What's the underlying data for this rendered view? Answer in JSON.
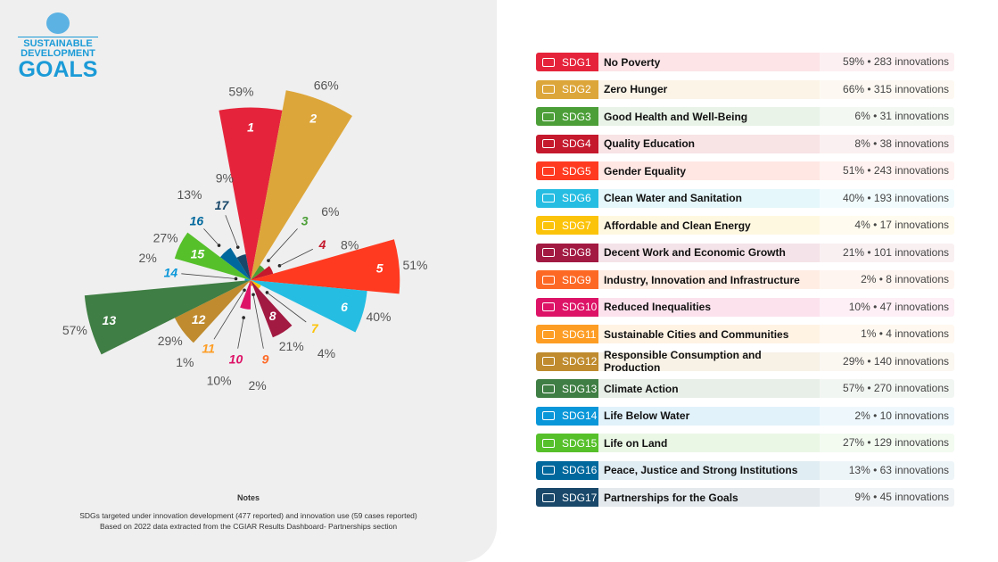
{
  "logo": {
    "line1": "SUSTAINABLE",
    "line2": "DEVELOPMENT",
    "line3": "GOALS"
  },
  "notes": {
    "title": "Notes",
    "line1": "SDGs targeted under innovation development (477 reported) and innovation use (59 cases reported)",
    "line2": "Based on 2022 data extracted from the CGIAR Results Dashboard- Partnerships section"
  },
  "chart_data": {
    "type": "polar-area",
    "categories": [
      "1",
      "2",
      "3",
      "4",
      "5",
      "6",
      "7",
      "8",
      "9",
      "10",
      "11",
      "12",
      "13",
      "14",
      "15",
      "16",
      "17"
    ],
    "values": [
      59,
      66,
      6,
      8,
      51,
      40,
      4,
      21,
      2,
      10,
      1,
      29,
      57,
      2,
      27,
      13,
      9
    ],
    "labels": [
      "59%",
      "66%",
      "6%",
      "8%",
      "51%",
      "40%",
      "4%",
      "21%",
      "2%",
      "10%",
      "1%",
      "29%",
      "57%",
      "2%",
      "27%",
      "13%",
      "9%"
    ],
    "colors": [
      "#E5243B",
      "#DDA63A",
      "#4C9F38",
      "#C5192D",
      "#FF3A21",
      "#26BDE2",
      "#FCC30B",
      "#A21942",
      "#FD6925",
      "#DD1367",
      "#FD9D24",
      "#BF8B2E",
      "#3F7E44",
      "#0A97D9",
      "#56C02B",
      "#00689D",
      "#19486A"
    ]
  },
  "legend": [
    {
      "code": "SDG1",
      "icon": "people-icon",
      "name": "No Poverty",
      "value": "59% • 283 innovations"
    },
    {
      "code": "SDG2",
      "icon": "bowl-icon",
      "name": "Zero Hunger",
      "value": "66% • 315 innovations"
    },
    {
      "code": "SDG3",
      "icon": "heartbeat-icon",
      "name": "Good Health and Well-Being",
      "value": "6% • 31 innovations"
    },
    {
      "code": "SDG4",
      "icon": "book-icon",
      "name": "Quality Education",
      "value": "8% • 38 innovations"
    },
    {
      "code": "SDG5",
      "icon": "gender-icon",
      "name": "Gender Equality",
      "value": "51% • 243 innovations"
    },
    {
      "code": "SDG6",
      "icon": "water-icon",
      "name": "Clean Water and Sanitation",
      "value": "40% • 193 innovations"
    },
    {
      "code": "SDG7",
      "icon": "sun-icon",
      "name": "Affordable and Clean Energy",
      "value": "4% • 17 innovations"
    },
    {
      "code": "SDG8",
      "icon": "growth-chart-icon",
      "name": "Decent Work and Economic Growth",
      "value": "21% • 101 innovations"
    },
    {
      "code": "SDG9",
      "icon": "cubes-icon",
      "name": "Industry, Innovation and Infrastructure",
      "value": "2% • 8 innovations"
    },
    {
      "code": "SDG10",
      "icon": "equality-icon",
      "name": "Reduced Inequalities",
      "value": "10% • 47 innovations"
    },
    {
      "code": "SDG11",
      "icon": "city-icon",
      "name": "Sustainable Cities and Communities",
      "value": "1% • 4 innovations"
    },
    {
      "code": "SDG12",
      "icon": "infinity-icon",
      "name": "Responsible Consumption and Production",
      "value": "29% • 140 innovations"
    },
    {
      "code": "SDG13",
      "icon": "eye-globe-icon",
      "name": "Climate Action",
      "value": "57% • 270 innovations"
    },
    {
      "code": "SDG14",
      "icon": "fish-icon",
      "name": "Life Below Water",
      "value": "2% • 10 innovations"
    },
    {
      "code": "SDG15",
      "icon": "tree-icon",
      "name": "Life on Land",
      "value": "27% • 129 innovations"
    },
    {
      "code": "SDG16",
      "icon": "dove-icon",
      "name": "Peace, Justice and Strong Institutions",
      "value": "13% • 63 innovations"
    },
    {
      "code": "SDG17",
      "icon": "flower-icon",
      "name": "Partnerships for the Goals",
      "value": "9% • 45 innovations"
    }
  ]
}
